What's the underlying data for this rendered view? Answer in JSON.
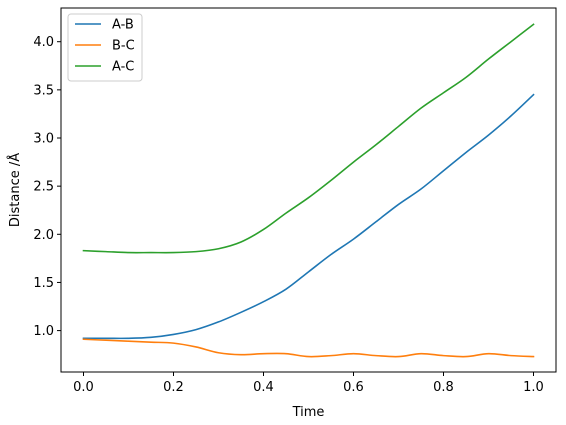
{
  "chart_data": {
    "type": "line",
    "xlabel": "Time",
    "ylabel": "Distance /Å",
    "xlim": [
      -0.05,
      1.05
    ],
    "ylim": [
      0.57,
      4.35
    ],
    "xticks": [
      0.0,
      0.2,
      0.4,
      0.6,
      0.8,
      1.0
    ],
    "xtick_labels": [
      "0.0",
      "0.2",
      "0.4",
      "0.6",
      "0.8",
      "1.0"
    ],
    "yticks": [
      1.0,
      1.5,
      2.0,
      2.5,
      3.0,
      3.5,
      4.0
    ],
    "ytick_labels": [
      "1.0",
      "1.5",
      "2.0",
      "2.5",
      "3.0",
      "3.5",
      "4.0"
    ],
    "grid": false,
    "legend": "top-left",
    "x": [
      0.0,
      0.05,
      0.1,
      0.15,
      0.2,
      0.25,
      0.3,
      0.35,
      0.4,
      0.45,
      0.5,
      0.55,
      0.6,
      0.65,
      0.7,
      0.75,
      0.8,
      0.85,
      0.9,
      0.95,
      1.0
    ],
    "series": [
      {
        "name": "A-B",
        "color": "#1f77b4",
        "values": [
          0.92,
          0.92,
          0.92,
          0.93,
          0.96,
          1.01,
          1.09,
          1.19,
          1.3,
          1.43,
          1.61,
          1.79,
          1.95,
          2.13,
          2.31,
          2.47,
          2.66,
          2.85,
          3.03,
          3.23,
          3.45
        ]
      },
      {
        "name": "B-C",
        "color": "#ff7f0e",
        "values": [
          0.91,
          0.9,
          0.89,
          0.88,
          0.87,
          0.83,
          0.77,
          0.75,
          0.76,
          0.76,
          0.73,
          0.74,
          0.76,
          0.74,
          0.73,
          0.76,
          0.74,
          0.73,
          0.76,
          0.74,
          0.73
        ]
      },
      {
        "name": "A-C",
        "color": "#2ca02c",
        "values": [
          1.83,
          1.82,
          1.81,
          1.81,
          1.81,
          1.82,
          1.85,
          1.92,
          2.05,
          2.22,
          2.38,
          2.56,
          2.75,
          2.93,
          3.12,
          3.31,
          3.47,
          3.63,
          3.82,
          4.0,
          4.18
        ]
      }
    ]
  }
}
